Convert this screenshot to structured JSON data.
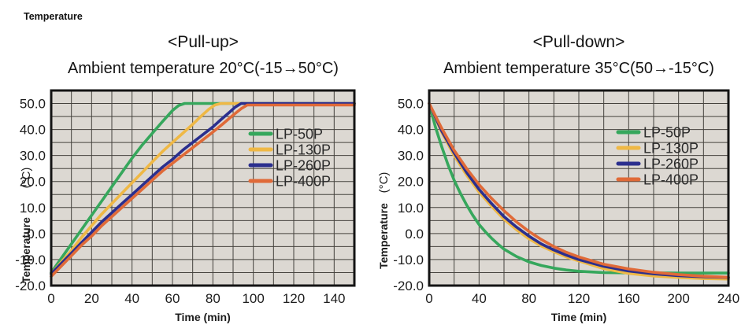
{
  "page": {
    "corner_label": "Temperature",
    "background": "#ffffff"
  },
  "colors": {
    "plot_background": "#dcd8d2",
    "grid_line": "#45423d",
    "plot_border": "#141414",
    "text": "#1c1c1c",
    "legend_text": "#2a2a2a"
  },
  "chart_data": [
    {
      "type": "line",
      "title": "<Pull-up>",
      "subtitle": "Ambient temperature 20°C(-15→50°C)",
      "xlabel": "Time (min)",
      "ylabel": "Temperature",
      "y_unit": "(°C)",
      "xlim": [
        0,
        150
      ],
      "ylim": [
        -20,
        55
      ],
      "x_grid_step": 10,
      "y_grid_step": 5,
      "grid": true,
      "legend_position": "inside-right",
      "x_tick_values": [
        0,
        20,
        40,
        60,
        80,
        100,
        120,
        140
      ],
      "x_ticks": [
        "0",
        "20",
        "40",
        "60",
        "80",
        "100",
        "120",
        "140"
      ],
      "y_tick_values": [
        50,
        40,
        30,
        20,
        10,
        0,
        -10,
        -20
      ],
      "y_ticks": [
        "50.0",
        "40.0",
        "30.0",
        "20.0",
        "10.0",
        "0.0",
        "-10.0",
        "-20.0"
      ],
      "series": [
        {
          "name": "LP-50P",
          "color": "#36a75c",
          "points": [
            [
              0,
              -15
            ],
            [
              5,
              -9.5
            ],
            [
              10,
              -4
            ],
            [
              15,
              1.5
            ],
            [
              20,
              7
            ],
            [
              25,
              12.5
            ],
            [
              30,
              18
            ],
            [
              35,
              23.5
            ],
            [
              40,
              29
            ],
            [
              45,
              34
            ],
            [
              50,
              38.5
            ],
            [
              55,
              43
            ],
            [
              60,
              47.3
            ],
            [
              63,
              49.2
            ],
            [
              66,
              50
            ],
            [
              150,
              50
            ]
          ]
        },
        {
          "name": "LP-130P",
          "color": "#efb845",
          "points": [
            [
              0,
              -15.5
            ],
            [
              5,
              -11
            ],
            [
              10,
              -6.5
            ],
            [
              15,
              -1.5
            ],
            [
              20,
              3
            ],
            [
              25,
              7.5
            ],
            [
              30,
              11.5
            ],
            [
              35,
              15.5
            ],
            [
              40,
              19.5
            ],
            [
              45,
              23.5
            ],
            [
              50,
              27.5
            ],
            [
              55,
              31.5
            ],
            [
              60,
              35
            ],
            [
              65,
              38.5
            ],
            [
              70,
              42
            ],
            [
              74,
              45
            ],
            [
              78,
              47.8
            ],
            [
              81,
              49.4
            ],
            [
              84,
              50
            ],
            [
              150,
              50
            ]
          ]
        },
        {
          "name": "LP-260P",
          "color": "#2b2f8e",
          "points": [
            [
              0,
              -15.5
            ],
            [
              5,
              -11.5
            ],
            [
              10,
              -7.5
            ],
            [
              15,
              -3.5
            ],
            [
              20,
              0.5
            ],
            [
              25,
              4.5
            ],
            [
              30,
              8
            ],
            [
              35,
              11.5
            ],
            [
              40,
              15
            ],
            [
              45,
              18.5
            ],
            [
              50,
              22
            ],
            [
              55,
              25.5
            ],
            [
              60,
              28.5
            ],
            [
              65,
              32
            ],
            [
              70,
              35
            ],
            [
              75,
              38
            ],
            [
              80,
              41
            ],
            [
              84,
              43.8
            ],
            [
              88,
              46.5
            ],
            [
              91,
              48.6
            ],
            [
              94,
              50
            ],
            [
              150,
              50
            ]
          ]
        },
        {
          "name": "LP-400P",
          "color": "#e06a38",
          "points": [
            [
              0,
              -16.5
            ],
            [
              5,
              -12.5
            ],
            [
              10,
              -8.5
            ],
            [
              15,
              -4.5
            ],
            [
              20,
              -1
            ],
            [
              25,
              3
            ],
            [
              30,
              6.5
            ],
            [
              35,
              10
            ],
            [
              40,
              13.5
            ],
            [
              45,
              17
            ],
            [
              50,
              20.5
            ],
            [
              55,
              24
            ],
            [
              60,
              27
            ],
            [
              65,
              30
            ],
            [
              70,
              33
            ],
            [
              75,
              36
            ],
            [
              80,
              39
            ],
            [
              85,
              42.2
            ],
            [
              90,
              45.5
            ],
            [
              94,
              48
            ],
            [
              97,
              49.4
            ],
            [
              150,
              49.4
            ]
          ]
        }
      ]
    },
    {
      "type": "line",
      "title": "<Pull-down>",
      "subtitle": "Ambient temperature 35°C(50→-15°C)",
      "xlabel": "Time (min)",
      "ylabel": "Temperature",
      "y_unit": "(°C)",
      "xlim": [
        0,
        240
      ],
      "ylim": [
        -20,
        55
      ],
      "x_grid_step": 20,
      "y_grid_step": 5,
      "grid": true,
      "legend_position": "inside-right",
      "x_tick_values": [
        0,
        40,
        80,
        120,
        160,
        200,
        240
      ],
      "x_ticks": [
        "0",
        "40",
        "80",
        "120",
        "160",
        "200",
        "240"
      ],
      "y_tick_values": [
        50,
        40,
        30,
        20,
        10,
        0,
        -10,
        -20
      ],
      "y_ticks": [
        "50.0",
        "40.0",
        "30.0",
        "20.0",
        "10.0",
        "0.0",
        "-10.0",
        "-20.0"
      ],
      "series": [
        {
          "name": "LP-50P",
          "color": "#36a75c",
          "points": [
            [
              0,
              50
            ],
            [
              5,
              41
            ],
            [
              10,
              33.5
            ],
            [
              15,
              26.5
            ],
            [
              20,
              20.5
            ],
            [
              25,
              15.5
            ],
            [
              30,
              11
            ],
            [
              35,
              7
            ],
            [
              40,
              3.5
            ],
            [
              45,
              0.7
            ],
            [
              50,
              -1.8
            ],
            [
              55,
              -4
            ],
            [
              60,
              -6
            ],
            [
              70,
              -8.8
            ],
            [
              80,
              -10.9
            ],
            [
              90,
              -12.3
            ],
            [
              100,
              -13.3
            ],
            [
              110,
              -14
            ],
            [
              120,
              -14.5
            ],
            [
              140,
              -15
            ],
            [
              160,
              -15.1
            ],
            [
              200,
              -15.2
            ],
            [
              240,
              -15.2
            ]
          ]
        },
        {
          "name": "LP-130P",
          "color": "#efb845",
          "points": [
            [
              0,
              50
            ],
            [
              10,
              39
            ],
            [
              20,
              30
            ],
            [
              30,
              22.5
            ],
            [
              40,
              16
            ],
            [
              50,
              10.5
            ],
            [
              60,
              5.5
            ],
            [
              70,
              1.5
            ],
            [
              80,
              -2
            ],
            [
              90,
              -4.8
            ],
            [
              100,
              -7
            ],
            [
              110,
              -9
            ],
            [
              120,
              -10.5
            ],
            [
              140,
              -13.5
            ],
            [
              160,
              -15.3
            ],
            [
              180,
              -16.3
            ],
            [
              200,
              -16.9
            ],
            [
              220,
              -17.3
            ],
            [
              240,
              -17.5
            ]
          ]
        },
        {
          "name": "LP-260P",
          "color": "#2b2f8e",
          "points": [
            [
              0,
              50
            ],
            [
              10,
              39.5
            ],
            [
              20,
              31
            ],
            [
              30,
              23.5
            ],
            [
              40,
              17
            ],
            [
              50,
              11.5
            ],
            [
              60,
              6.5
            ],
            [
              70,
              2.5
            ],
            [
              80,
              -1
            ],
            [
              90,
              -4
            ],
            [
              100,
              -6.3
            ],
            [
              110,
              -8.3
            ],
            [
              120,
              -10
            ],
            [
              140,
              -12.6
            ],
            [
              160,
              -14.4
            ],
            [
              180,
              -15.5
            ],
            [
              200,
              -16.2
            ],
            [
              220,
              -16.6
            ],
            [
              240,
              -16.9
            ]
          ]
        },
        {
          "name": "LP-400P",
          "color": "#e06a38",
          "points": [
            [
              0,
              50
            ],
            [
              10,
              40.5
            ],
            [
              20,
              32
            ],
            [
              30,
              25
            ],
            [
              40,
              18.8
            ],
            [
              50,
              13.5
            ],
            [
              60,
              8.8
            ],
            [
              70,
              4.5
            ],
            [
              80,
              0.8
            ],
            [
              90,
              -2.3
            ],
            [
              100,
              -5
            ],
            [
              110,
              -7.2
            ],
            [
              120,
              -9
            ],
            [
              140,
              -11.8
            ],
            [
              160,
              -13.6
            ],
            [
              180,
              -14.9
            ],
            [
              200,
              -15.8
            ],
            [
              220,
              -16.4
            ],
            [
              240,
              -16.8
            ]
          ]
        }
      ]
    }
  ]
}
